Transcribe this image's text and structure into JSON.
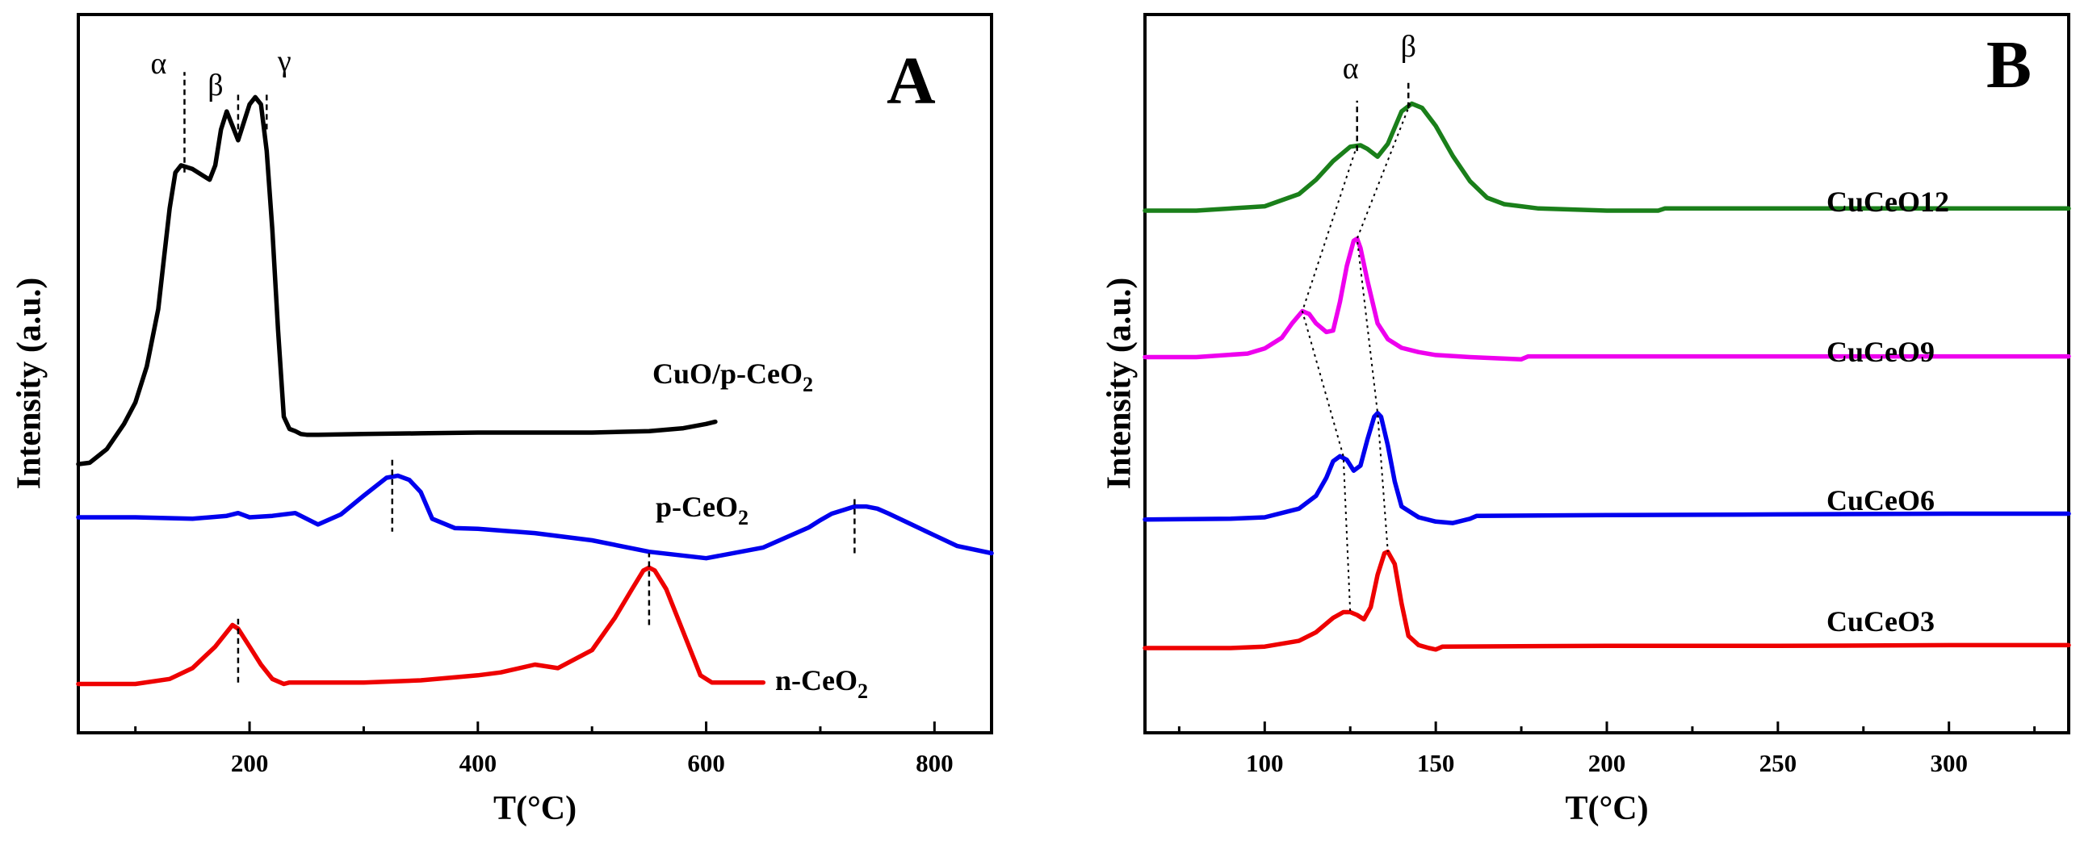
{
  "chart_data": [
    {
      "panel": "A",
      "type": "line",
      "xlabel": "T(°C)",
      "ylabel": "Intensity (a.u.)",
      "xlim": [
        50,
        850
      ],
      "xticks": [
        200,
        400,
        600,
        800
      ],
      "ylim": [
        0,
        100
      ],
      "grid": false,
      "series": [
        {
          "name": "CuO/p-CeO",
          "sub": "2",
          "color": "#000000",
          "x": [
            50,
            60,
            75,
            90,
            100,
            110,
            120,
            125,
            130,
            135,
            140,
            150,
            160,
            165,
            170,
            175,
            180,
            185,
            190,
            195,
            200,
            205,
            210,
            215,
            220,
            225,
            230,
            235,
            240,
            245,
            250,
            260,
            300,
            350,
            400,
            450,
            500,
            550,
            580,
            600,
            608
          ],
          "y": [
            37.4,
            37.6,
            39.5,
            43,
            46,
            51,
            59,
            66,
            73,
            78,
            79,
            78.5,
            77.5,
            77,
            79,
            84,
            86.5,
            84.5,
            82.5,
            85,
            87.5,
            88.5,
            87.5,
            81,
            70,
            56,
            44,
            42.3,
            42,
            41.6,
            41.5,
            41.5,
            41.6,
            41.7,
            41.8,
            41.8,
            41.8,
            42,
            42.4,
            43,
            43.3
          ]
        },
        {
          "name": "p-CeO",
          "sub": "2",
          "color": "#0000ee",
          "x": [
            50,
            100,
            150,
            180,
            190,
            200,
            220,
            240,
            260,
            280,
            300,
            320,
            330,
            340,
            350,
            360,
            380,
            400,
            450,
            500,
            550,
            600,
            650,
            690,
            700,
            710,
            720,
            730,
            740,
            750,
            760,
            780,
            800,
            820,
            850
          ],
          "y": [
            30,
            30,
            29.8,
            30.2,
            30.6,
            30,
            30.2,
            30.6,
            29,
            30.4,
            33,
            35.5,
            35.8,
            35.2,
            33.5,
            29.8,
            28.5,
            28.4,
            27.8,
            26.8,
            25.2,
            24.3,
            25.8,
            28.6,
            29.6,
            30.5,
            31,
            31.5,
            31.5,
            31.2,
            30.5,
            29,
            27.5,
            26,
            25
          ]
        },
        {
          "name": "n-CeO",
          "sub": "2",
          "color": "#ee0000",
          "x": [
            50,
            100,
            130,
            150,
            170,
            180,
            185,
            190,
            200,
            210,
            220,
            230,
            235,
            240,
            300,
            350,
            400,
            420,
            450,
            470,
            500,
            520,
            535,
            545,
            550,
            555,
            565,
            580,
            595,
            605,
            620,
            650
          ],
          "y": [
            6.8,
            6.8,
            7.5,
            9,
            12,
            14,
            15,
            14.5,
            12,
            9.5,
            7.5,
            6.8,
            7,
            7,
            7,
            7.3,
            8,
            8.4,
            9.5,
            9,
            11.5,
            16,
            20,
            22.6,
            23,
            22.6,
            20,
            14,
            8,
            7,
            7,
            7
          ]
        }
      ],
      "markers": [
        {
          "x": 143,
          "label": "α"
        },
        {
          "x": 190,
          "label": "β"
        },
        {
          "x": 215,
          "label": "γ"
        },
        {
          "x": 325,
          "label": ""
        },
        {
          "x": 730,
          "label": ""
        },
        {
          "x": 190,
          "label": ""
        },
        {
          "x": 550,
          "label": ""
        }
      ]
    },
    {
      "panel": "B",
      "type": "line",
      "xlabel": "T(°C)",
      "ylabel": "Intensity (a.u.)",
      "xlim": [
        65,
        335
      ],
      "xticks": [
        100,
        150,
        200,
        250,
        300
      ],
      "ylim": [
        0,
        100
      ],
      "grid": false,
      "series": [
        {
          "name": "CuCeO12",
          "color": "#1a7f1a",
          "x": [
            65,
            80,
            100,
            110,
            115,
            120,
            125,
            128,
            130,
            133,
            136,
            140,
            143,
            146,
            150,
            155,
            160,
            165,
            170,
            180,
            200,
            215,
            217,
            250,
            300,
            335
          ],
          "y": [
            72.7,
            72.7,
            73.3,
            75,
            77,
            79.6,
            81.6,
            81.8,
            81.3,
            80.2,
            82,
            86.5,
            87.6,
            87,
            84.5,
            80.3,
            76.8,
            74.5,
            73.6,
            73,
            72.7,
            72.7,
            73,
            73,
            73,
            73
          ]
        },
        {
          "name": "CuCeO9",
          "color": "#ee00ee",
          "x": [
            65,
            80,
            95,
            100,
            105,
            108,
            111,
            113,
            115,
            118,
            120,
            122,
            124,
            126,
            127,
            128,
            130,
            133,
            136,
            140,
            145,
            150,
            160,
            175,
            177,
            200,
            250,
            300,
            335
          ],
          "y": [
            52.3,
            52.3,
            52.8,
            53.5,
            55,
            57,
            58.7,
            58.3,
            57,
            55.8,
            56,
            60,
            65,
            68.5,
            68.8,
            67.5,
            63,
            57,
            54.8,
            53.6,
            53,
            52.6,
            52.3,
            52,
            52.4,
            52.4,
            52.4,
            52.4,
            52.4
          ]
        },
        {
          "name": "CuCeO6",
          "color": "#0000ee",
          "x": [
            65,
            90,
            100,
            110,
            115,
            118,
            120,
            122,
            124,
            126,
            128,
            130,
            132,
            133,
            134,
            136,
            138,
            140,
            145,
            150,
            155,
            160,
            162,
            200,
            250,
            300,
            335
          ],
          "y": [
            29.7,
            29.8,
            30,
            31.2,
            33,
            35.5,
            37.8,
            38.5,
            38,
            36.5,
            37.2,
            40.8,
            44,
            44.5,
            44,
            40,
            35,
            31.5,
            30,
            29.4,
            29.2,
            29.8,
            30.2,
            30.3,
            30.4,
            30.5,
            30.5
          ]
        },
        {
          "name": "CuCeO3",
          "color": "#ee0000",
          "x": [
            65,
            90,
            100,
            110,
            115,
            120,
            123,
            125,
            127,
            129,
            131,
            133,
            135,
            136,
            138,
            140,
            142,
            145,
            148,
            150,
            152,
            200,
            250,
            300,
            335
          ],
          "y": [
            11.8,
            11.8,
            12,
            12.8,
            14,
            16,
            16.8,
            16.8,
            16.4,
            15.8,
            17.5,
            22,
            25,
            25.2,
            23.5,
            18,
            13.5,
            12.2,
            11.8,
            11.6,
            12,
            12.1,
            12.1,
            12.2,
            12.2
          ]
        }
      ],
      "markers": [
        {
          "x": 127,
          "label": "α"
        },
        {
          "x": 142,
          "label": "β"
        }
      ],
      "guides": [
        {
          "x": [
            127,
            111,
            123,
            125
          ],
          "y": [
            81.8,
            58.7,
            38.5,
            16.8
          ]
        },
        {
          "x": [
            142.5,
            127,
            133,
            136
          ],
          "y": [
            87.6,
            68.8,
            44.5,
            25.2
          ]
        }
      ]
    }
  ]
}
